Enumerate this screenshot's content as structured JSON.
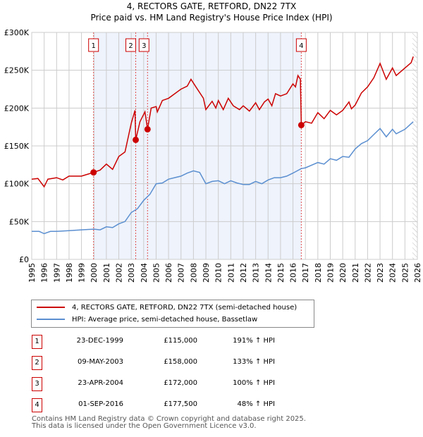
{
  "title": "4, RECTORS GATE, RETFORD, DN22 7TX",
  "subtitle": "Price paid vs. HM Land Registry's House Price Index (HPI)",
  "colors": {
    "property": "#cc0000",
    "hpi": "#5b8fd0",
    "shade": "#eef3fc"
  },
  "chart_data": {
    "type": "line",
    "title": "4, RECTORS GATE, RETFORD, DN22 7TX",
    "xlim": [
      1995,
      2026
    ],
    "ylim": [
      0,
      300000
    ],
    "x_ticks": [
      "1995",
      "1996",
      "1997",
      "1998",
      "1999",
      "2000",
      "2001",
      "2002",
      "2003",
      "2004",
      "2005",
      "2006",
      "2007",
      "2008",
      "2009",
      "2010",
      "2011",
      "2012",
      "2013",
      "2014",
      "2015",
      "2016",
      "2017",
      "2018",
      "2019",
      "2020",
      "2021",
      "2022",
      "2023",
      "2024",
      "2025",
      "2026"
    ],
    "y_ticks": [
      {
        "v": 0,
        "label": "£0"
      },
      {
        "v": 50000,
        "label": "£50K"
      },
      {
        "v": 100000,
        "label": "£100K"
      },
      {
        "v": 150000,
        "label": "£150K"
      },
      {
        "v": 200000,
        "label": "£200K"
      },
      {
        "v": 250000,
        "label": "£250K"
      },
      {
        "v": 300000,
        "label": "£300K"
      }
    ],
    "series": [
      {
        "name": "4, RECTORS GATE, RETFORD, DN22 7TX (semi-detached house)",
        "color": "#cc0000",
        "x": [
          1995,
          1995.5,
          1996,
          1996.3,
          1997,
          1997.5,
          1998,
          1999,
          1999.97,
          2000.5,
          2001,
          2001.5,
          2002,
          2002.5,
          2003,
          2003.3,
          2003.36,
          2003.7,
          2004.1,
          2004.31,
          2004.6,
          2005,
          2005.1,
          2005.5,
          2006,
          2007,
          2007.5,
          2007.8,
          2008.2,
          2008.8,
          2009,
          2009.5,
          2009.8,
          2010,
          2010.4,
          2010.8,
          2011.2,
          2011.7,
          2012,
          2012.5,
          2013,
          2013.3,
          2013.7,
          2014,
          2014.3,
          2014.6,
          2015,
          2015.5,
          2016,
          2016.2,
          2016.4,
          2016.6,
          2016.67,
          2017,
          2017.5,
          2018,
          2018.5,
          2019,
          2019.5,
          2020,
          2020.5,
          2020.7,
          2021,
          2021.5,
          2022,
          2022.5,
          2023,
          2023.5,
          2024,
          2024.3,
          2025,
          2025.5,
          2025.67
        ],
        "y": [
          106000,
          107000,
          96000,
          106000,
          108000,
          105000,
          110000,
          110000,
          115000,
          118000,
          126000,
          119000,
          136000,
          142000,
          180000,
          197000,
          158000,
          182000,
          195000,
          172000,
          200000,
          202000,
          195000,
          210000,
          213000,
          225000,
          229000,
          238000,
          228000,
          213000,
          198000,
          209000,
          200000,
          210000,
          198000,
          213000,
          203000,
          198000,
          203000,
          196000,
          207000,
          198000,
          208000,
          212000,
          203000,
          219000,
          216000,
          219000,
          232000,
          228000,
          243000,
          238000,
          177500,
          182000,
          180000,
          194000,
          186000,
          197000,
          191000,
          197000,
          208000,
          199000,
          204000,
          220000,
          228000,
          240000,
          259000,
          238000,
          253000,
          243000,
          253000,
          260000,
          268000
        ]
      },
      {
        "name": "HPI: Average price, semi-detached house, Bassetlaw",
        "color": "#5b8fd0",
        "x": [
          1995,
          1995.6,
          1996,
          1996.5,
          1997,
          1998,
          1999,
          2000,
          2000.5,
          2001,
          2001.5,
          2002,
          2002.5,
          2003,
          2003.5,
          2004,
          2004.5,
          2005,
          2005.5,
          2006,
          2007,
          2007.5,
          2008,
          2008.5,
          2009,
          2009.5,
          2010,
          2010.5,
          2011,
          2011.5,
          2012,
          2012.5,
          2013,
          2013.5,
          2014,
          2014.5,
          2015,
          2015.5,
          2016,
          2016.67,
          2017,
          2018,
          2018.5,
          2019,
          2019.5,
          2020,
          2020.5,
          2021,
          2021.5,
          2022,
          2022.5,
          2023,
          2023.5,
          2024,
          2024.3,
          2025,
          2025.67
        ],
        "y": [
          37000,
          37000,
          34000,
          37000,
          37000,
          38000,
          39000,
          40000,
          39000,
          43000,
          42000,
          47000,
          50000,
          62000,
          67000,
          78000,
          86000,
          100000,
          101000,
          106000,
          110000,
          114000,
          117000,
          115000,
          100000,
          103000,
          104000,
          100000,
          104000,
          101000,
          99000,
          99000,
          103000,
          100000,
          105000,
          108000,
          108000,
          110000,
          114000,
          120000,
          121000,
          128000,
          126000,
          133000,
          131000,
          136000,
          135000,
          146000,
          153000,
          157000,
          165000,
          173000,
          162000,
          172000,
          166000,
          172000,
          182000
        ]
      }
    ],
    "sales": [
      {
        "label": "1",
        "x": 1999.97,
        "y": 115000
      },
      {
        "label": "2",
        "x": 2003.36,
        "y": 158000
      },
      {
        "label": "3",
        "x": 2004.31,
        "y": 172000
      },
      {
        "label": "4",
        "x": 2016.67,
        "y": 177500
      }
    ],
    "shaded_range": [
      1999.97,
      2016.67
    ],
    "hatched_from": 2025.6
  },
  "legend": [
    {
      "label": "4, RECTORS GATE, RETFORD, DN22 7TX (semi-detached house)",
      "color": "#cc0000"
    },
    {
      "label": "HPI: Average price, semi-detached house, Bassetlaw",
      "color": "#5b8fd0"
    }
  ],
  "transactions": [
    {
      "num": "1",
      "date": "23-DEC-1999",
      "price": "£115,000",
      "hpi": "191% ↑ HPI"
    },
    {
      "num": "2",
      "date": "09-MAY-2003",
      "price": "£158,000",
      "hpi": "133% ↑ HPI"
    },
    {
      "num": "3",
      "date": "23-APR-2004",
      "price": "£172,000",
      "hpi": "100% ↑ HPI"
    },
    {
      "num": "4",
      "date": "01-SEP-2016",
      "price": "£177,500",
      "hpi": "48% ↑ HPI"
    }
  ],
  "footer": [
    "Contains HM Land Registry data © Crown copyright and database right 2025.",
    "This data is licensed under the Open Government Licence v3.0."
  ]
}
